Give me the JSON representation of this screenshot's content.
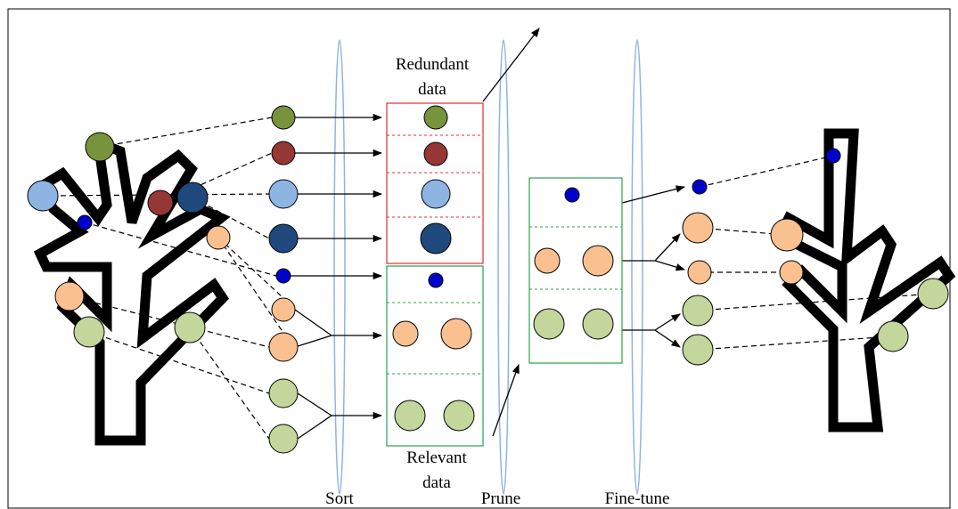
{
  "redundant_label": [
    "Redundant",
    "data"
  ],
  "relevant_label": [
    "Relevant",
    "data"
  ],
  "stages": [
    "Sort",
    "Prune",
    "Fine-tune"
  ]
}
